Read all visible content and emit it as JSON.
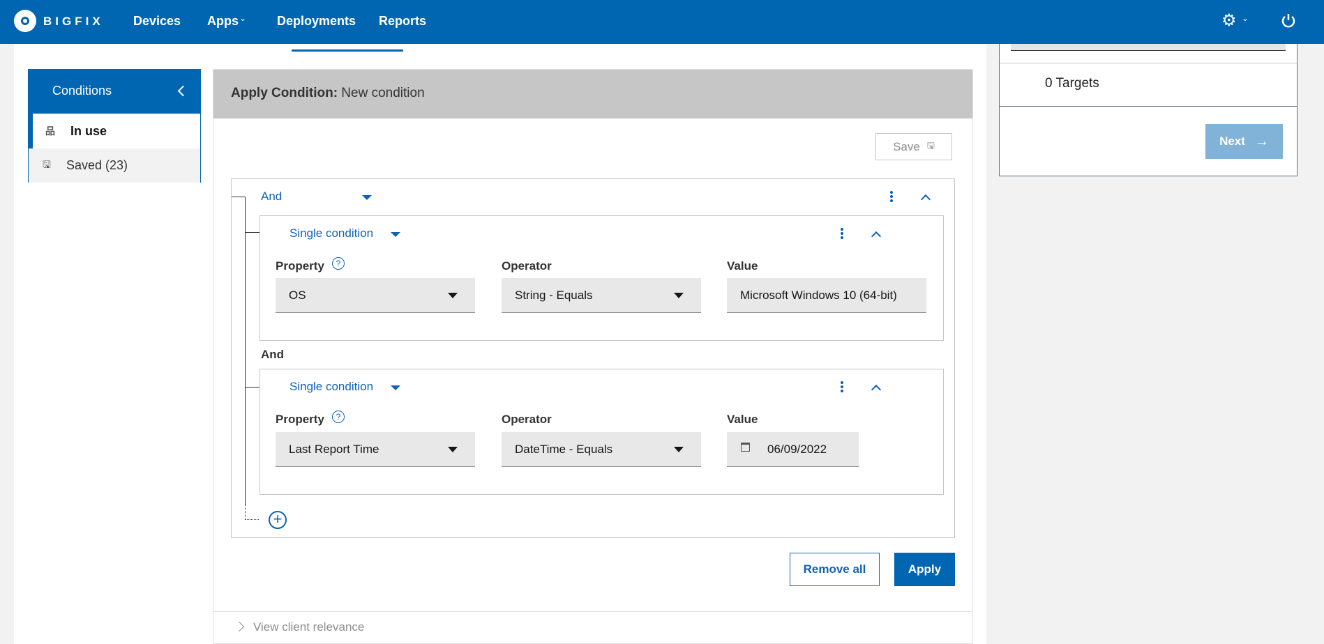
{
  "header": {
    "brand": "BIGFIX",
    "nav": [
      "Devices",
      "Apps",
      "Deployments",
      "Reports"
    ],
    "icons": [
      "settings-gear-icon",
      "power-icon"
    ],
    "color": "#0066b1"
  },
  "sidebar": {
    "title": "Conditions",
    "items": [
      {
        "label": "In use",
        "icon": "hierarchy-icon"
      },
      {
        "label": "Saved (23)",
        "icon": "save-icon"
      }
    ]
  },
  "panel": {
    "title_bold": "Apply Condition:",
    "title_rest": " New condition",
    "save_label": "Save",
    "group_operator": "And",
    "conditions": [
      {
        "type": "Single condition",
        "property_label": "Property",
        "operator_label": "Operator",
        "value_label": "Value",
        "property": "OS",
        "operator": "String - Equals",
        "value": "Microsoft Windows 10 (64-bit)"
      },
      {
        "type": "Single condition",
        "property_label": "Property",
        "operator_label": "Operator",
        "value_label": "Value",
        "property": "Last Report Time",
        "operator": "DateTime - Equals",
        "value": "06/09/2022"
      }
    ],
    "joiner": "And",
    "remove_all_label": "Remove all",
    "apply_label": "Apply",
    "relevance_label": "View client relevance"
  },
  "targets": {
    "count_label": "0 Targets",
    "next_label": "Next"
  }
}
